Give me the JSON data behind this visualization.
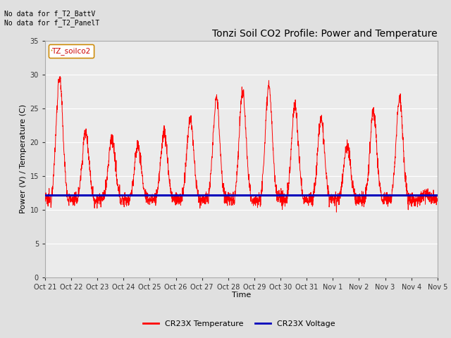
{
  "title": "Tonzi Soil CO2 Profile: Power and Temperature",
  "ylabel": "Power (V) / Temperature (C)",
  "xlabel": "Time",
  "ylim": [
    0,
    35
  ],
  "yticks": [
    0,
    5,
    10,
    15,
    20,
    25,
    30,
    35
  ],
  "xtick_labels": [
    "Oct 21",
    "Oct 22",
    "Oct 23",
    "Oct 24",
    "Oct 25",
    "Oct 26",
    "Oct 27",
    "Oct 28",
    "Oct 29",
    "Oct 30",
    "Oct 31",
    "Nov 1",
    "Nov 2",
    "Nov 3",
    "Nov 4",
    "Nov 5"
  ],
  "annotation_text": "No data for f_T2_BattV\nNo data for f_T2_PanelT",
  "legend_box_label": "TZ_soilco2",
  "legend_items": [
    "CR23X Temperature",
    "CR23X Voltage"
  ],
  "legend_colors": [
    "#ff0000",
    "#0000bb"
  ],
  "voltage_value": 12.1,
  "bg_color": "#e0e0e0",
  "plot_bg_color": "#ebebeb",
  "red_line_color": "#ff0000",
  "blue_line_color": "#0000bb",
  "grid_color": "#ffffff",
  "title_fontsize": 10,
  "axis_fontsize": 8,
  "tick_fontsize": 7
}
